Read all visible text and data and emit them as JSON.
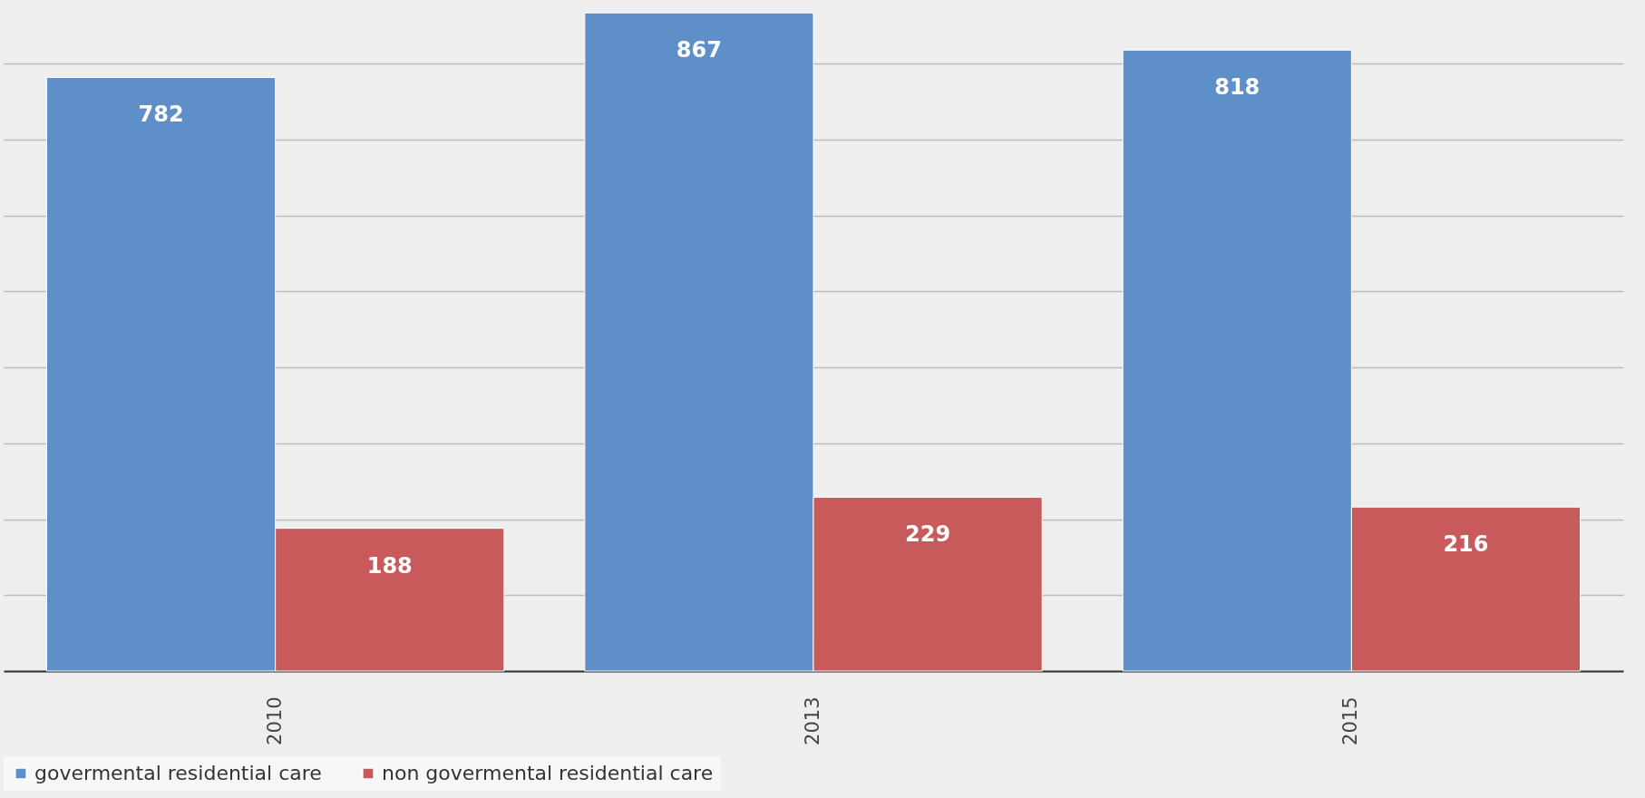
{
  "chart_data": {
    "type": "bar",
    "categories": [
      "2010",
      "2013",
      "2015"
    ],
    "series": [
      {
        "name": "govermental residential care",
        "color": "#5f8fc8",
        "values": [
          782,
          867,
          818
        ]
      },
      {
        "name": "non govermental residential care",
        "color": "#c95a5b",
        "values": [
          188,
          229,
          216
        ]
      }
    ],
    "ylim": [
      0,
      884
    ],
    "yticks": [
      {
        "value": 0,
        "label": null
      },
      {
        "value": 100,
        "label": null
      },
      {
        "value": 200,
        "label": null
      },
      {
        "value": 300,
        "label": null
      },
      {
        "value": 400,
        "label": null
      },
      {
        "value": 500,
        "label": null
      },
      {
        "value": 600,
        "label": null
      },
      {
        "value": 700,
        "label": null
      },
      {
        "value": 800,
        "label": null
      }
    ],
    "tick_labels": "x",
    "grid": "y",
    "data_labels": true,
    "legend": "bottom"
  }
}
